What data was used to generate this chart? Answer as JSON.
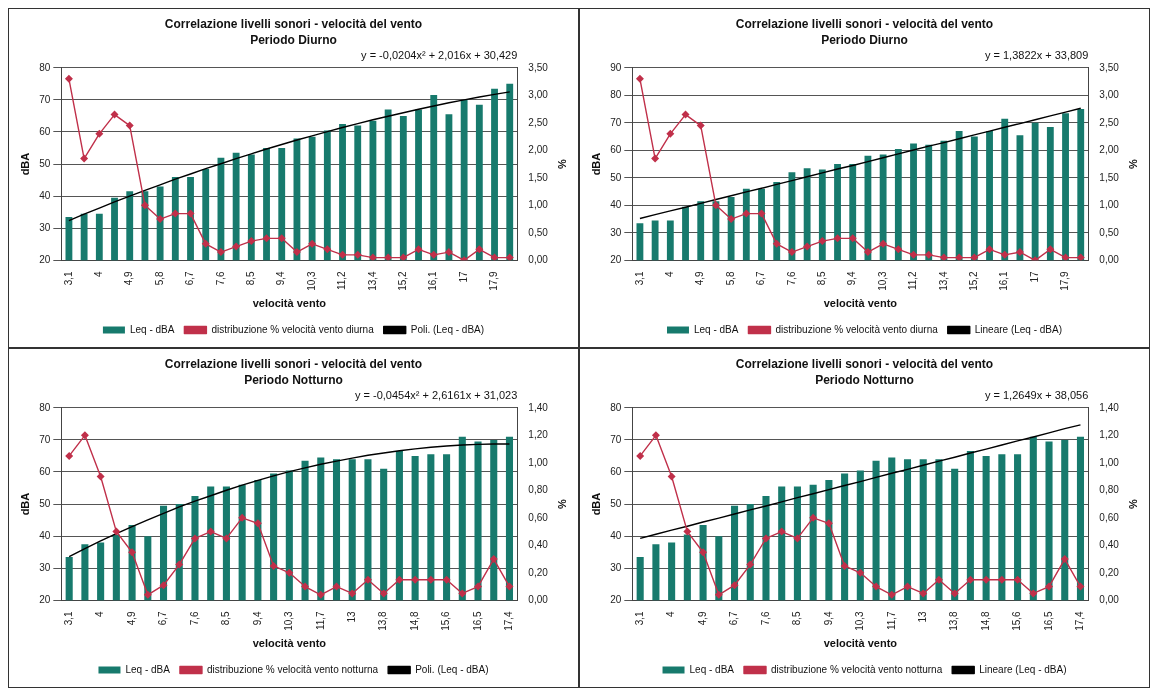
{
  "chart_data": [
    {
      "type": "bar",
      "title": "Correlazione livelli sonori - velocità del vento",
      "subtitle": "Periodo Diurno",
      "xlabel": "velocità vento",
      "ylabel": "dBA",
      "y2label": "%",
      "annotations": [
        "y = -0,0204x² + 2,016x + 30,429"
      ],
      "categories": [
        "3,1",
        null,
        "4",
        null,
        "4,9",
        null,
        "5,8",
        null,
        "6,7",
        null,
        "7,6",
        null,
        "8,5",
        null,
        "9,4",
        null,
        "10,3",
        null,
        "11,2",
        null,
        "13,4",
        null,
        "15,2",
        null,
        "16,1",
        null,
        "17",
        null,
        "17,9",
        null
      ],
      "series": [
        {
          "name": "Leq - dBA",
          "color": "#177a6d",
          "values": [
            33.5,
            34.5,
            34.5,
            39.5,
            41.5,
            41.5,
            43,
            46,
            46,
            48.5,
            52,
            53.5,
            53,
            55,
            55,
            58,
            58.5,
            60.5,
            62.5,
            62,
            63.5,
            67,
            65,
            67,
            71.5,
            65.5,
            70,
            68.5,
            73.5,
            75
          ]
        },
        {
          "name": "distribuzione % velocità vento diurna",
          "type": "line",
          "axis": "y2",
          "marker": "diamond",
          "color": "#c0304a",
          "values": [
            3.3,
            1.85,
            2.3,
            2.65,
            2.45,
            1.0,
            0.75,
            0.85,
            0.85,
            0.3,
            0.15,
            0.25,
            0.35,
            0.4,
            0.4,
            0.15,
            0.3,
            0.2,
            0.1,
            0.1,
            0.05,
            0.05,
            0.05,
            0.2,
            0.1,
            0.15,
            0.0,
            0.2,
            0.05,
            0.05
          ]
        },
        {
          "name": "Poli. (Leq - dBA)",
          "type": "line",
          "marker": "none",
          "color": "#000000",
          "values": [
            32.4,
            34.4,
            36.3,
            38.2,
            40.0,
            41.8,
            43.5,
            45.3,
            46.9,
            48.6,
            50.1,
            51.7,
            53.2,
            54.7,
            56.1,
            57.5,
            58.8,
            60.1,
            61.4,
            62.6,
            63.8,
            64.9,
            66.0,
            67.1,
            68.1,
            69.1,
            70.0,
            70.9,
            71.7,
            72.5
          ]
        }
      ],
      "ylim": [
        20,
        80
      ],
      "yticks": [
        20,
        30,
        40,
        50,
        60,
        70,
        80
      ],
      "y2lim": [
        0,
        3.5
      ],
      "y2ticks": [
        {
          "value": 0,
          "label": "0,00"
        },
        {
          "value": 0.5,
          "label": "0,50"
        },
        {
          "value": 1,
          "label": "1,00"
        },
        {
          "value": 1.5,
          "label": "1,50"
        },
        {
          "value": 2,
          "label": "2,00"
        },
        {
          "value": 2.5,
          "label": "2,50"
        },
        {
          "value": 3,
          "label": "3,00"
        },
        {
          "value": 3.5,
          "label": "3,50"
        }
      ],
      "grid": "y",
      "legend": "bottom"
    },
    {
      "type": "bar",
      "title": "Correlazione livelli sonori - velocità del vento",
      "subtitle": "Periodo Diurno",
      "xlabel": "velocità vento",
      "ylabel": "dBA",
      "y2label": "%",
      "annotations": [
        "y = 1,3822x + 33,809"
      ],
      "categories": [
        "3,1",
        null,
        "4",
        null,
        "4,9",
        null,
        "5,8",
        null,
        "6,7",
        null,
        "7,6",
        null,
        "8,5",
        null,
        "9,4",
        null,
        "10,3",
        null,
        "11,2",
        null,
        "13,4",
        null,
        "15,2",
        null,
        "16,1",
        null,
        "17",
        null,
        "17,9",
        null
      ],
      "series": [
        {
          "name": "Leq - dBA",
          "color": "#177a6d",
          "values": [
            33.5,
            34.5,
            34.5,
            39.5,
            41.5,
            41.5,
            43,
            46,
            46,
            48.5,
            52,
            53.5,
            53,
            55,
            55,
            58,
            58.5,
            60.5,
            62.5,
            62,
            63.5,
            67,
            65,
            67,
            71.5,
            65.5,
            70,
            68.5,
            73.5,
            75
          ]
        },
        {
          "name": "distribuzione % velocità vento diurna",
          "type": "line",
          "axis": "y2",
          "marker": "diamond",
          "color": "#c0304a",
          "values": [
            3.3,
            1.85,
            2.3,
            2.65,
            2.45,
            1.0,
            0.75,
            0.85,
            0.85,
            0.3,
            0.15,
            0.25,
            0.35,
            0.4,
            0.4,
            0.15,
            0.3,
            0.2,
            0.1,
            0.1,
            0.05,
            0.05,
            0.05,
            0.2,
            0.1,
            0.15,
            0.0,
            0.2,
            0.05,
            0.05
          ]
        },
        {
          "name": "Lineare (Leq - dBA)",
          "type": "line",
          "marker": "none",
          "color": "#000000",
          "values": [
            35.2,
            36.6,
            38.0,
            39.3,
            40.7,
            42.1,
            43.5,
            44.9,
            46.2,
            47.6,
            49.0,
            50.4,
            51.8,
            53.2,
            54.5,
            55.9,
            57.3,
            58.7,
            60.1,
            61.5,
            62.8,
            64.2,
            65.6,
            67.0,
            68.4,
            69.7,
            71.1,
            72.5,
            73.9,
            75.3
          ]
        }
      ],
      "ylim": [
        20,
        90
      ],
      "yticks": [
        20,
        30,
        40,
        50,
        60,
        70,
        80,
        90
      ],
      "y2lim": [
        0,
        3.5
      ],
      "y2ticks": [
        {
          "value": 0,
          "label": "0,00"
        },
        {
          "value": 0.5,
          "label": "0,50"
        },
        {
          "value": 1,
          "label": "1,00"
        },
        {
          "value": 1.5,
          "label": "1,50"
        },
        {
          "value": 2,
          "label": "2,00"
        },
        {
          "value": 2.5,
          "label": "2,50"
        },
        {
          "value": 3,
          "label": "3,00"
        },
        {
          "value": 3.5,
          "label": "3,50"
        }
      ],
      "grid": "y",
      "legend": "bottom"
    },
    {
      "type": "bar",
      "title": "Correlazione livelli sonori - velocità del vento",
      "subtitle": "Periodo Notturno",
      "xlabel": "velocità vento",
      "ylabel": "dBA",
      "y2label": "%",
      "annotations": [
        "y = -0,0454x² + 2,6161x + 31,023"
      ],
      "categories": [
        "3,1",
        null,
        "4",
        null,
        "4,9",
        null,
        "6,7",
        null,
        "7,6",
        null,
        "8,5",
        null,
        "9,4",
        null,
        "10,3",
        null,
        "11,7",
        null,
        "13",
        null,
        "13,8",
        null,
        "14,8",
        null,
        "15,6",
        null,
        "16,5",
        null,
        "17,4"
      ],
      "series": [
        {
          "name": "Leq - dBA",
          "color": "#177a6d",
          "values": [
            33.5,
            37.5,
            38,
            40.5,
            43.5,
            40,
            49.5,
            50,
            52.5,
            55.5,
            55.5,
            56,
            57.5,
            59.5,
            60.5,
            63.5,
            64.5,
            64,
            64,
            64,
            61,
            66.5,
            65,
            65.5,
            65.5,
            71,
            69.5,
            70,
            71
          ]
        },
        {
          "name": "distribuzione % velocità vento notturna",
          "type": "line",
          "axis": "y2",
          "marker": "diamond",
          "color": "#c0304a",
          "values": [
            1.05,
            1.2,
            0.9,
            0.5,
            0.35,
            0.04,
            0.11,
            0.26,
            0.45,
            0.5,
            0.45,
            0.6,
            0.56,
            0.25,
            0.2,
            0.1,
            0.04,
            0.1,
            0.05,
            0.15,
            0.05,
            0.15,
            0.15,
            0.15,
            0.15,
            0.05,
            0.1,
            0.3,
            0.1
          ]
        },
        {
          "name": "Poli. (Leq - dBA)",
          "type": "line",
          "marker": "none",
          "color": "#000000",
          "values": [
            33.6,
            36.1,
            38.5,
            40.8,
            43.0,
            45.1,
            47.1,
            49.1,
            50.9,
            52.6,
            54.3,
            55.9,
            57.4,
            58.8,
            60.1,
            61.3,
            62.4,
            63.4,
            64.3,
            65.2,
            65.9,
            66.6,
            67.2,
            67.7,
            68.1,
            68.4,
            68.6,
            68.7,
            68.7
          ]
        }
      ],
      "ylim": [
        20,
        80
      ],
      "yticks": [
        20,
        30,
        40,
        50,
        60,
        70,
        80
      ],
      "y2lim": [
        0,
        1.4
      ],
      "y2ticks": [
        {
          "value": 0,
          "label": "0,00"
        },
        {
          "value": 0.2,
          "label": "0,20"
        },
        {
          "value": 0.4,
          "label": "0,40"
        },
        {
          "value": 0.6,
          "label": "0,60"
        },
        {
          "value": 0.8,
          "label": "0,80"
        },
        {
          "value": 1,
          "label": "1,00"
        },
        {
          "value": 1.2,
          "label": "1,20"
        },
        {
          "value": 1.4,
          "label": "1,40"
        }
      ],
      "grid": "y",
      "legend": "bottom"
    },
    {
      "type": "bar",
      "title": "Correlazione livelli sonori - velocità del vento",
      "subtitle": "Periodo Notturno",
      "xlabel": "velocità vento",
      "ylabel": "dBA",
      "y2label": "%",
      "annotations": [
        "y = 1,2649x + 38,056"
      ],
      "categories": [
        "3,1",
        null,
        "4",
        null,
        "4,9",
        null,
        "6,7",
        null,
        "7,6",
        null,
        "8,5",
        null,
        "9,4",
        null,
        "10,3",
        null,
        "11,7",
        null,
        "13",
        null,
        "13,8",
        null,
        "14,8",
        null,
        "15,6",
        null,
        "16,5",
        null,
        "17,4"
      ],
      "series": [
        {
          "name": "Leq - dBA",
          "color": "#177a6d",
          "values": [
            33.5,
            37.5,
            38,
            40.5,
            43.5,
            40,
            49.5,
            50,
            52.5,
            55.5,
            55.5,
            56,
            57.5,
            59.5,
            60.5,
            63.5,
            64.5,
            64,
            64,
            64,
            61,
            66.5,
            65,
            65.5,
            65.5,
            71,
            69.5,
            70,
            71
          ]
        },
        {
          "name": "distribuzione % velocità vento notturna",
          "type": "line",
          "axis": "y2",
          "marker": "diamond",
          "color": "#c0304a",
          "values": [
            1.05,
            1.2,
            0.9,
            0.5,
            0.35,
            0.04,
            0.11,
            0.26,
            0.45,
            0.5,
            0.45,
            0.6,
            0.56,
            0.25,
            0.2,
            0.1,
            0.04,
            0.1,
            0.05,
            0.15,
            0.05,
            0.15,
            0.15,
            0.15,
            0.15,
            0.05,
            0.1,
            0.3,
            0.1
          ]
        },
        {
          "name": "Lineare (Leq - dBA)",
          "type": "line",
          "marker": "none",
          "color": "#000000",
          "values": [
            39.3,
            40.6,
            41.9,
            43.1,
            44.4,
            45.6,
            46.9,
            48.2,
            49.4,
            50.7,
            52.0,
            53.2,
            54.5,
            55.8,
            57.0,
            58.3,
            59.6,
            60.8,
            62.1,
            63.4,
            64.6,
            65.9,
            67.1,
            68.4,
            69.7,
            70.9,
            72.2,
            73.5,
            74.7
          ]
        }
      ],
      "ylim": [
        20,
        80
      ],
      "yticks": [
        20,
        30,
        40,
        50,
        60,
        70,
        80
      ],
      "y2lim": [
        0,
        1.4
      ],
      "y2ticks": [
        {
          "value": 0,
          "label": "0,00"
        },
        {
          "value": 0.2,
          "label": "0,20"
        },
        {
          "value": 0.4,
          "label": "0,40"
        },
        {
          "value": 0.6,
          "label": "0,60"
        },
        {
          "value": 0.8,
          "label": "0,80"
        },
        {
          "value": 1,
          "label": "1,00"
        },
        {
          "value": 1.2,
          "label": "1,20"
        },
        {
          "value": 1.4,
          "label": "1,40"
        }
      ],
      "grid": "y",
      "legend": "bottom"
    }
  ]
}
